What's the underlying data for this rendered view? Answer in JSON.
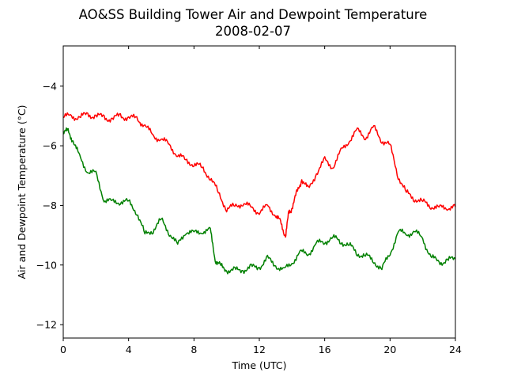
{
  "chart_data": {
    "type": "line",
    "title": "AO&SS Building Tower Air and Dewpoint Temperature",
    "subtitle": "2008-02-07",
    "xlabel": "Time (UTC)",
    "ylabel": "Air and Dewpoint Temperature (°C)",
    "xlim": [
      0,
      24
    ],
    "ylim": [
      -12.45,
      -2.65
    ],
    "xticks": [
      0,
      4,
      8,
      12,
      16,
      20,
      24
    ],
    "yticks": [
      -12,
      -10,
      -8,
      -6,
      -4
    ],
    "grid": false,
    "legend": "none",
    "series": [
      {
        "color": "#ff0000",
        "x": [
          0,
          0.5,
          1,
          1.5,
          2,
          2.5,
          3,
          3.5,
          4,
          4.5,
          5,
          5.5,
          6,
          6.5,
          7,
          7.5,
          8,
          8.5,
          9,
          9.5,
          10,
          10.5,
          11,
          11.5,
          12,
          12.5,
          13,
          13.3,
          13.6,
          13.8,
          14,
          14.3,
          14.6,
          15,
          15.5,
          16,
          16.5,
          17,
          17.5,
          18,
          18.5,
          19,
          19.5,
          20,
          20.5,
          21,
          21.5,
          22,
          22.5,
          23,
          23.5,
          24
        ],
        "y": [
          -5.05,
          -5.0,
          -5.05,
          -4.95,
          -5.0,
          -5.05,
          -5.1,
          -5.0,
          -5.05,
          -5.1,
          -5.3,
          -5.7,
          -5.75,
          -6.0,
          -6.3,
          -6.5,
          -6.6,
          -6.75,
          -7.05,
          -7.6,
          -8.1,
          -8.05,
          -7.9,
          -8.1,
          -8.2,
          -8.05,
          -8.3,
          -8.6,
          -9.0,
          -8.3,
          -8.05,
          -7.6,
          -7.1,
          -7.5,
          -6.9,
          -6.5,
          -6.7,
          -6.2,
          -5.8,
          -5.5,
          -5.7,
          -5.4,
          -5.8,
          -6.0,
          -7.0,
          -7.6,
          -7.75,
          -7.9,
          -8.0,
          -8.1,
          -8.05,
          -8.05
        ]
      },
      {
        "color": "#008000",
        "x": [
          0,
          0.3,
          0.6,
          1,
          1.5,
          2,
          2.5,
          3,
          3.5,
          4,
          4.5,
          5,
          5.5,
          6,
          6.5,
          7,
          7.5,
          8,
          8.5,
          9,
          9.3,
          9.6,
          10,
          10.5,
          11,
          11.5,
          12,
          12.5,
          13,
          13.5,
          14,
          14.5,
          15,
          15.5,
          16,
          16.5,
          17,
          17.5,
          18,
          18.5,
          19,
          19.5,
          20,
          20.5,
          21,
          21.5,
          22,
          22.5,
          23,
          23.5,
          24
        ],
        "y": [
          -5.5,
          -5.55,
          -5.8,
          -6.4,
          -6.85,
          -6.95,
          -7.8,
          -7.9,
          -7.85,
          -7.9,
          -8.2,
          -9.0,
          -8.8,
          -8.5,
          -8.9,
          -9.35,
          -8.85,
          -8.95,
          -8.85,
          -8.85,
          -9.8,
          -10.05,
          -10.15,
          -10.2,
          -10.15,
          -10.1,
          -10.05,
          -9.8,
          -10.0,
          -10.2,
          -9.9,
          -9.6,
          -9.6,
          -9.3,
          -9.2,
          -9.1,
          -9.2,
          -9.35,
          -9.6,
          -9.7,
          -9.85,
          -10.15,
          -9.6,
          -8.9,
          -8.95,
          -8.9,
          -9.1,
          -9.75,
          -9.9,
          -9.85,
          -9.8
        ]
      }
    ]
  }
}
